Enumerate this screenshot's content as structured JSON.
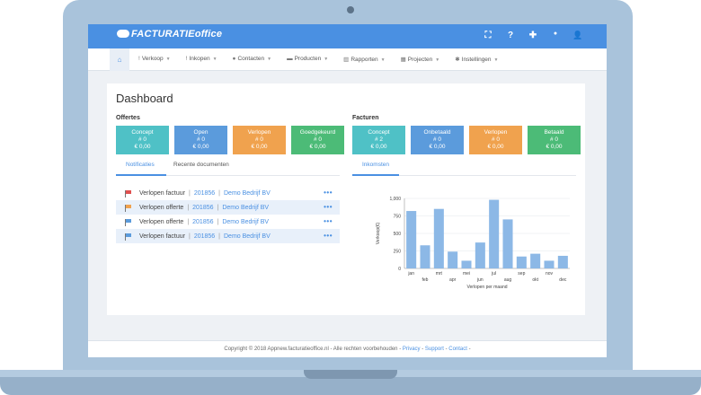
{
  "app": {
    "logo_text": "FACTURATIEoffice"
  },
  "topbar_icons": [
    "expand-icon",
    "help-icon",
    "plus-icon",
    "bell-icon",
    "user-settings-icon"
  ],
  "topbar_glyphs": {
    "expand": "⛶",
    "help": "?",
    "plus": "✚",
    "bell": "●",
    "user": "👤"
  },
  "menu": [
    {
      "label": "Verkoop",
      "icon": "!"
    },
    {
      "label": "Inkopen",
      "icon": "!"
    },
    {
      "label": "Contacten",
      "icon": "●"
    },
    {
      "label": "Producten",
      "icon": "▬"
    },
    {
      "label": "Rapporten",
      "icon": "▥"
    },
    {
      "label": "Projecten",
      "icon": "▦"
    },
    {
      "label": "Instellingen",
      "icon": "✱"
    }
  ],
  "page_title": "Dashboard",
  "offertes": {
    "label": "Offertes",
    "tiles": [
      {
        "name": "Concept",
        "count": "# 0",
        "amount": "€ 0,00",
        "color": "#4fc1c6"
      },
      {
        "name": "Open",
        "count": "# 0",
        "amount": "€ 0,00",
        "color": "#5b9bdc"
      },
      {
        "name": "Verlopen",
        "count": "# 0",
        "amount": "€ 0,00",
        "color": "#f0a24e"
      },
      {
        "name": "Goedgekeurd",
        "count": "# 0",
        "amount": "€ 0,00",
        "color": "#4cbb77"
      }
    ]
  },
  "facturen": {
    "label": "Facturen",
    "tiles": [
      {
        "name": "Concept",
        "count": "# 2",
        "amount": "€ 0,00",
        "color": "#4fc1c6"
      },
      {
        "name": "Onbetaald",
        "count": "# 0",
        "amount": "€ 0,00",
        "color": "#5b9bdc"
      },
      {
        "name": "Verlopen",
        "count": "# 0",
        "amount": "€ 0,00",
        "color": "#f0a24e"
      },
      {
        "name": "Betaald",
        "count": "# 0",
        "amount": "€ 0,00",
        "color": "#4cbb77"
      }
    ]
  },
  "left_tabs": {
    "notificaties": "Notificaties",
    "recente": "Recente documenten"
  },
  "right_tabs": {
    "inkomsten": "Inkomsten"
  },
  "notifications": [
    {
      "type": "Verlopen factuur",
      "number": "201856",
      "company": "Demo Bedrijf BV",
      "flag_color": "#e0504f"
    },
    {
      "type": "Verlopen offerte",
      "number": "201856",
      "company": "Demo Bedrijf BV",
      "flag_color": "#f0a24e"
    },
    {
      "type": "Verlopen offerte",
      "number": "201856",
      "company": "Demo Bedrijf BV",
      "flag_color": "#5b9bdc"
    },
    {
      "type": "Verlopen factuur",
      "number": "201856",
      "company": "Demo Bedrijf BV",
      "flag_color": "#5b9bdc"
    }
  ],
  "dots_glyph": "•••",
  "sep_glyph": "|",
  "chart_data": {
    "type": "bar",
    "categories": [
      "jan",
      "feb",
      "mrt",
      "apr",
      "mei",
      "jun",
      "jul",
      "aug",
      "sep",
      "okt",
      "nov",
      "dec"
    ],
    "values": [
      820,
      330,
      850,
      240,
      110,
      370,
      980,
      700,
      170,
      210,
      110,
      180
    ],
    "ylim": [
      0,
      1000
    ],
    "yticks": [
      "0",
      "250",
      "500",
      "750",
      "1,000"
    ],
    "ylabel": "Verkoop(€)",
    "xlabel": "Verlopen per maand",
    "bar_color": "#8cb8e6",
    "grid": true
  },
  "footer": {
    "copyright": "Copyright © 2018 Appnew.facturatieoffice.nl",
    "rights": "Alle rechten voorbehouden",
    "privacy": "Privacy",
    "support": "Support",
    "contact": "Contact",
    "sep": "-"
  }
}
